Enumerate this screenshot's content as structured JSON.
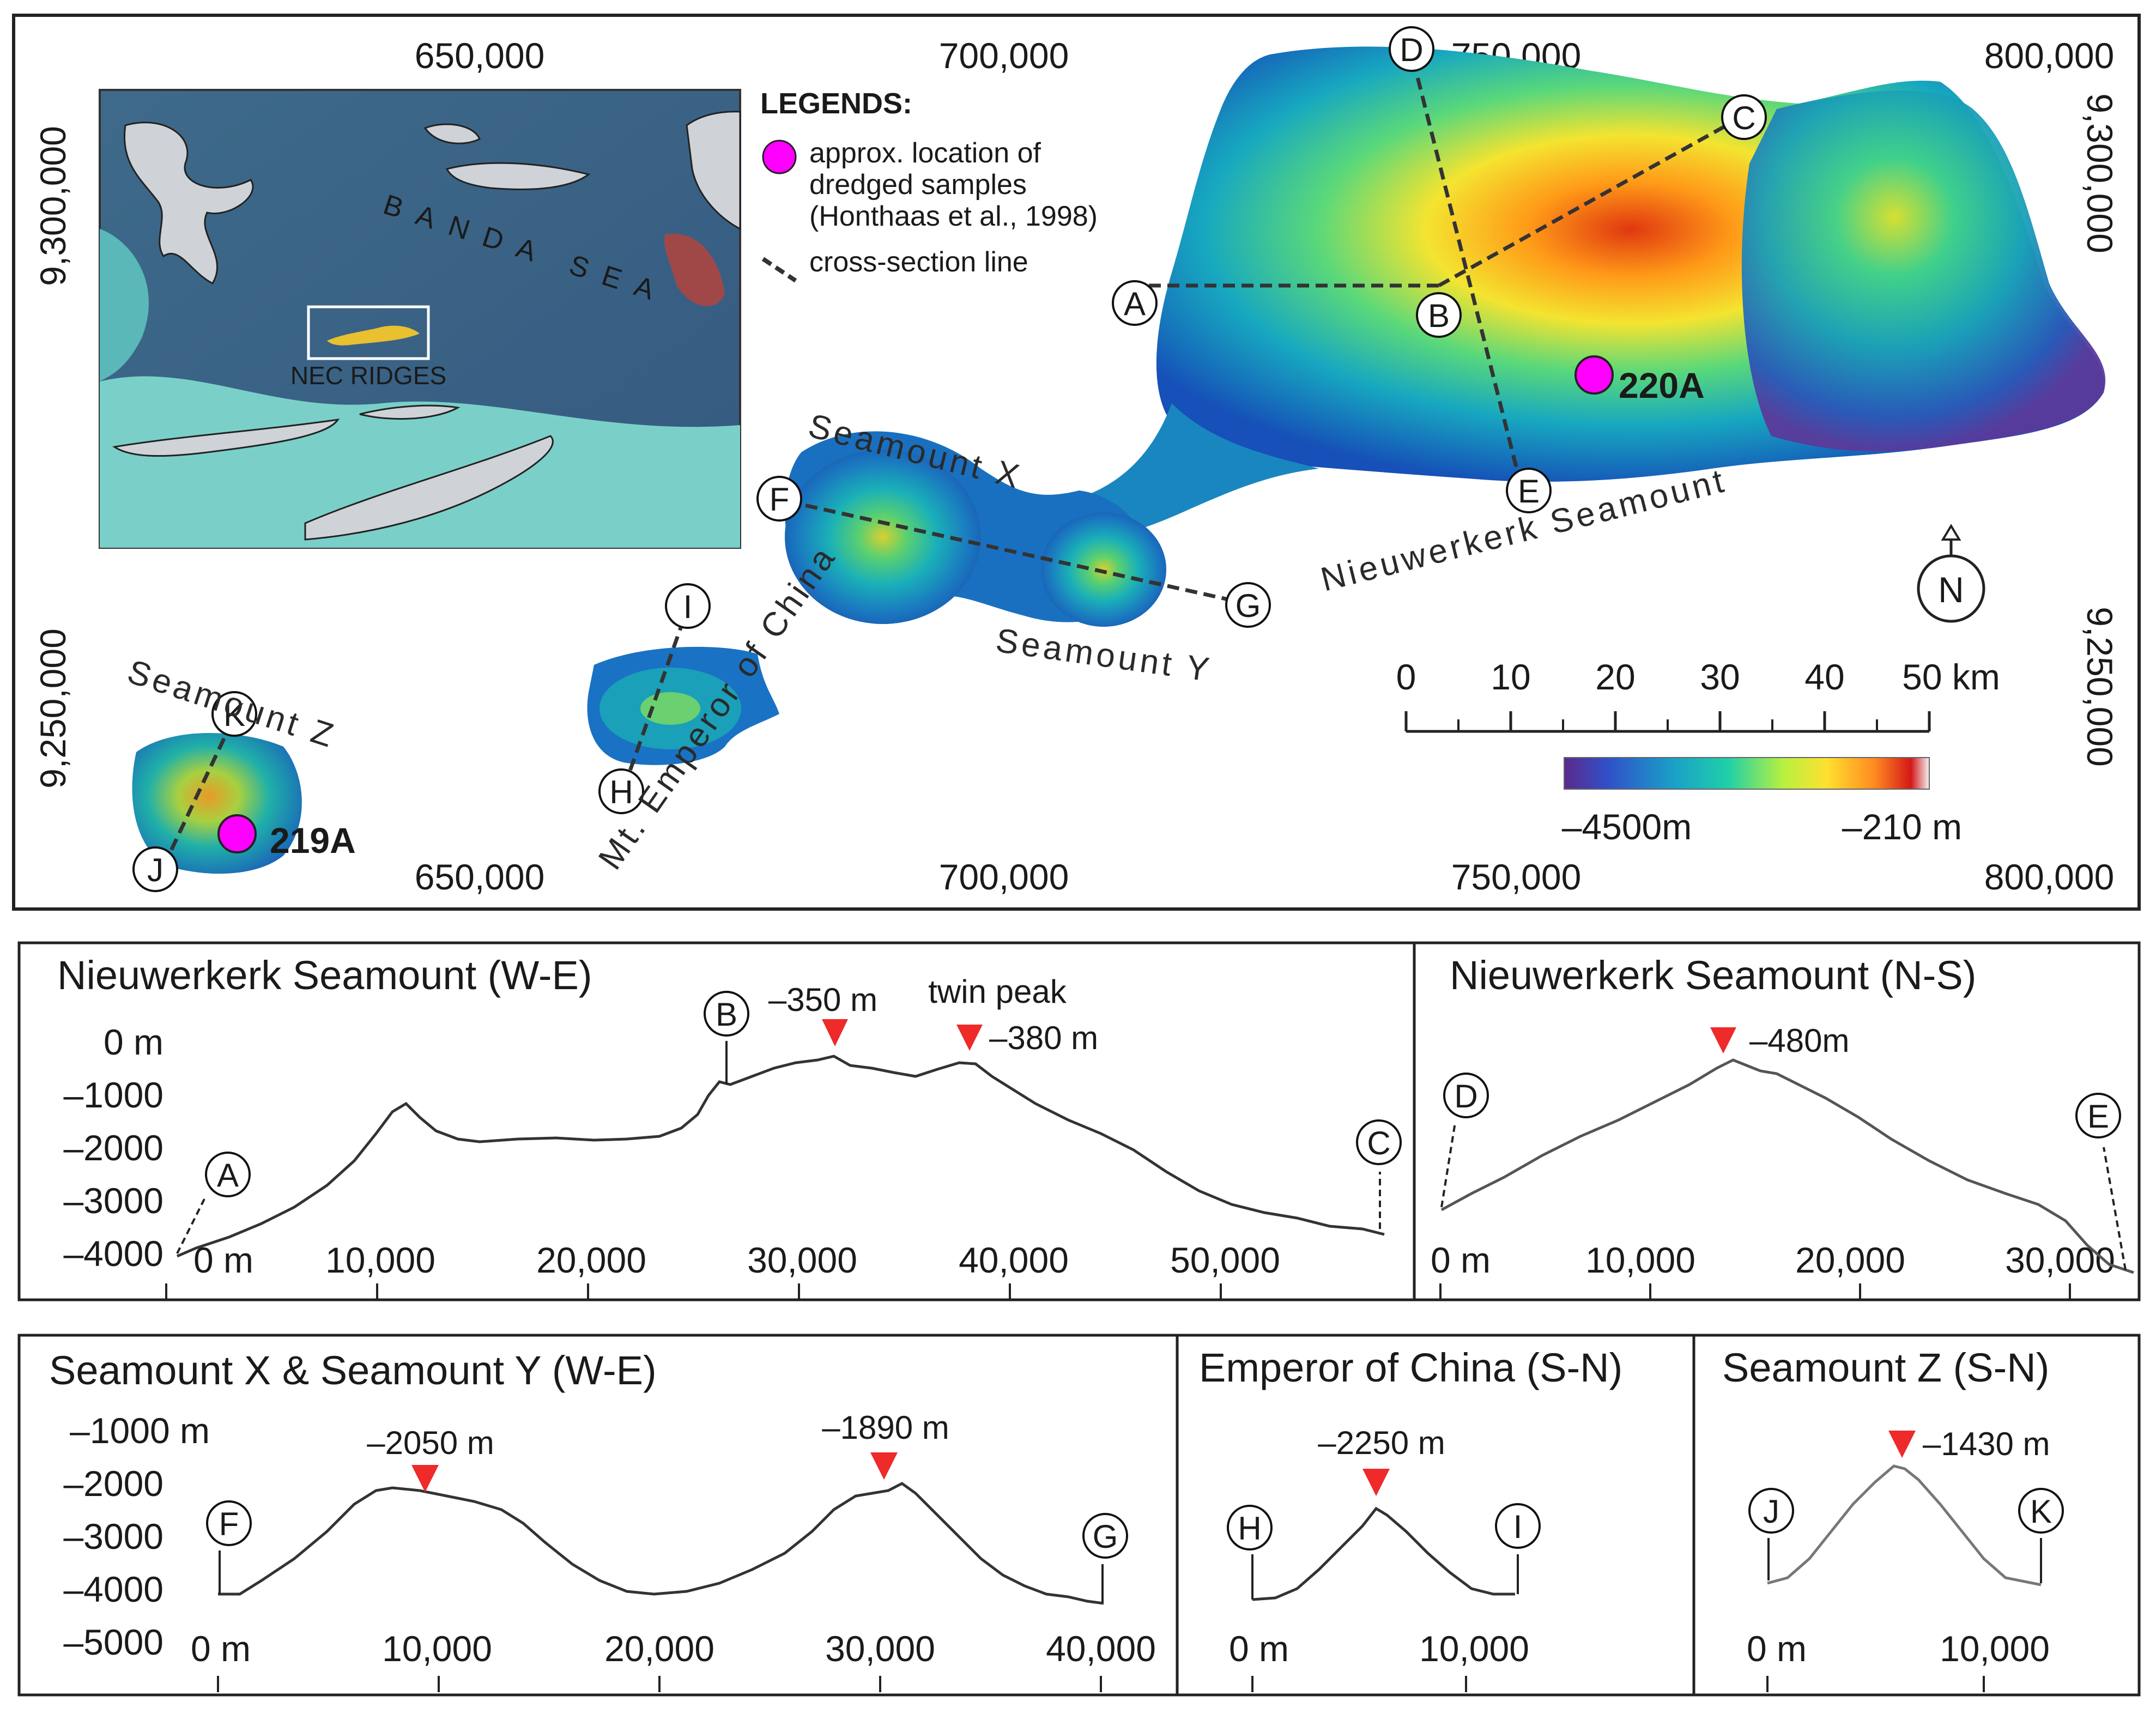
{
  "map": {
    "top_ticks": [
      "650,000",
      "700,000",
      "750,000",
      "800,000"
    ],
    "bottom_ticks": [
      "650,000",
      "700,000",
      "750,000",
      "800,000"
    ],
    "left_ticks": [
      "9,300,000",
      "9,250,000"
    ],
    "right_ticks": [
      "9,300,000",
      "9,250,000"
    ],
    "seamount_labels": {
      "nieuwerkerk": "Nieuwerkerk Seamount",
      "x": "Seamount X",
      "y": "Seamount Y",
      "z": "Seamount Z",
      "emperor": "Mt. Emperor of China"
    },
    "section_points": [
      "A",
      "B",
      "C",
      "D",
      "E",
      "F",
      "G",
      "H",
      "I",
      "J",
      "K"
    ],
    "samples": [
      {
        "label": "220A",
        "color": "#ff00ff"
      },
      {
        "label": "219A",
        "color": "#ff00ff"
      }
    ],
    "north_label": "N",
    "legend": {
      "title": "LEGENDS:",
      "sample_line1": "approx. location of",
      "sample_line2": "dredged samples",
      "sample_line3": "(Honthaas et al., 1998)",
      "cross_section": "cross-section line"
    },
    "inset": {
      "sea_label": "BANDA SEA",
      "box_label": "NEC RIDGES"
    },
    "scale_bar": {
      "ticks": [
        "0",
        "10",
        "20",
        "30",
        "40",
        "50 km"
      ]
    },
    "colorbar": {
      "min_label": "–4500m",
      "max_label": "–210 m",
      "min_value": -4500,
      "max_value": -210
    }
  },
  "profiles": [
    {
      "title": "Nieuwerkerk Seamount (W-E)",
      "start": "A",
      "end": "C",
      "mid": "B",
      "y_ticks": [
        "0 m",
        "–1000",
        "–2000",
        "–3000",
        "–4000"
      ],
      "x_ticks": [
        "0 m",
        "10,000",
        "20,000",
        "30,000",
        "40,000",
        "50,000"
      ],
      "peaks": [
        {
          "label": "–350 m",
          "x": 31500,
          "y": -350
        },
        {
          "label": "–380 m",
          "x": 38000,
          "y": -380
        }
      ],
      "note": "twin peak"
    },
    {
      "title": "Nieuwerkerk Seamount (N-S)",
      "start": "D",
      "end": "E",
      "x_ticks": [
        "0 m",
        "10,000",
        "20,000",
        "30,000"
      ],
      "peaks": [
        {
          "label": "–480m",
          "x": 13500,
          "y": -480
        }
      ]
    },
    {
      "title": "Seamount X & Seamount Y (W-E)",
      "start": "F",
      "end": "G",
      "y_ticks": [
        "–1000 m",
        "–2000",
        "–3000",
        "–4000",
        "–5000"
      ],
      "x_ticks": [
        "0 m",
        "10,000",
        "20,000",
        "30,000",
        "40,000"
      ],
      "peaks": [
        {
          "label": "–2050 m",
          "x": 9500,
          "y": -2050
        },
        {
          "label": "–1890 m",
          "x": 31000,
          "y": -1890
        }
      ]
    },
    {
      "title": "Emperor of China (S-N)",
      "start": "H",
      "end": "I",
      "x_ticks": [
        "0 m",
        "10,000"
      ],
      "peaks": [
        {
          "label": "–2250 m",
          "x": 6000,
          "y": -2250
        }
      ]
    },
    {
      "title": "Seamount Z (S-N)",
      "start": "J",
      "end": "K",
      "x_ticks": [
        "0 m",
        "10,000"
      ],
      "peaks": [
        {
          "label": "–1430 m",
          "x": 6500,
          "y": -1430
        }
      ]
    }
  ],
  "colors": {
    "peak_marker": "#ee2a2a",
    "sample": "#ff00ff",
    "sample_text": "#ff1aff"
  }
}
